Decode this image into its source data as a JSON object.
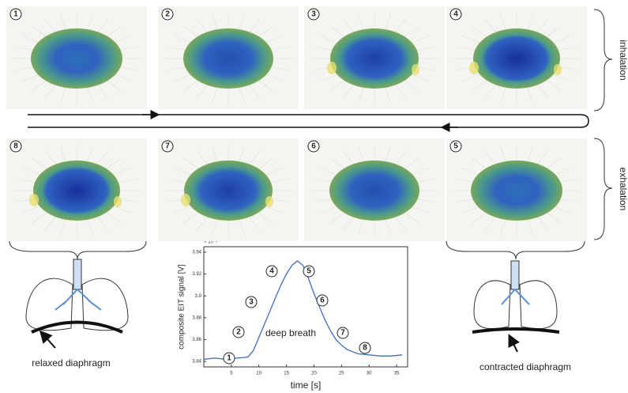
{
  "panels": {
    "top": [
      "1",
      "2",
      "3",
      "4"
    ],
    "bottom": [
      "8",
      "7",
      "6",
      "5"
    ]
  },
  "side_labels": {
    "top": "inhalation",
    "bottom": "exhalation"
  },
  "captions": {
    "left": "relaxed diaphragm",
    "right": "contracted diaphragm"
  },
  "plot": {
    "y_label": "composite EIT signal [V]",
    "x_label": "time [s]",
    "exponent": "× 10⁻³",
    "annotation": "deep breath",
    "markers": [
      "1",
      "2",
      "3",
      "4",
      "5",
      "6",
      "7",
      "8"
    ],
    "x": [
      0,
      2,
      4,
      6,
      8,
      9,
      10,
      11,
      12,
      13,
      14,
      15,
      16,
      17,
      18,
      19,
      20,
      21,
      22,
      23,
      24,
      25,
      26,
      27,
      28,
      30,
      32,
      34,
      36
    ],
    "values": [
      3.842,
      3.843,
      3.842,
      3.843,
      3.844,
      3.85,
      3.862,
      3.874,
      3.886,
      3.898,
      3.91,
      3.92,
      3.928,
      3.932,
      3.928,
      3.916,
      3.902,
      3.89,
      3.878,
      3.868,
      3.86,
      3.855,
      3.851,
      3.849,
      3.847,
      3.846,
      3.845,
      3.845,
      3.846
    ],
    "xlim": [
      0,
      37
    ],
    "ylim": [
      3.835,
      3.945
    ],
    "xticks": [
      5,
      10,
      15,
      20,
      25,
      30,
      35
    ],
    "yticks": [
      3.84,
      3.86,
      3.88,
      3.9,
      3.92,
      3.94
    ],
    "color": "#3a6fc4"
  }
}
